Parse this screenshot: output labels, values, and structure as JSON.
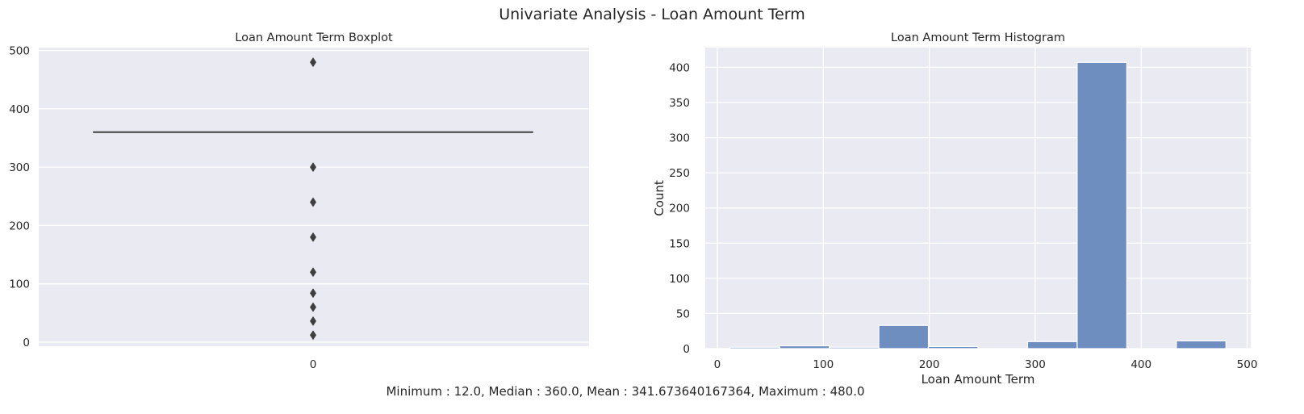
{
  "figure": {
    "suptitle": "Univariate Analysis - Loan Amount Term",
    "summary": "Minimum : 12.0, Median : 360.0, Mean : 341.673640167364, Maximum : 480.0"
  },
  "chart_data": [
    {
      "type": "box",
      "title": "Loan Amount Term Boxplot",
      "xlabel": "",
      "ylabel": "",
      "categories": [
        "0"
      ],
      "ylim": [
        -7,
        505
      ],
      "yticks": [
        0,
        100,
        200,
        300,
        400,
        500
      ],
      "box": {
        "q1": 360,
        "median": 360,
        "q3": 360,
        "whisker_low": 360,
        "whisker_high": 360
      },
      "outliers": [
        12,
        36,
        60,
        84,
        120,
        180,
        240,
        300,
        480
      ],
      "grid": true,
      "colors": {
        "background": "#eaeaf2",
        "grid": "#ffffff",
        "line": "#3f3f3f",
        "outlier": "#3f3f3f"
      }
    },
    {
      "type": "bar",
      "title": "Loan Amount Term Histogram",
      "xlabel": "Loan Amount Term",
      "ylabel": "Count",
      "xlim": [
        -11.4,
        503.4
      ],
      "ylim": [
        0,
        428
      ],
      "xticks": [
        0,
        100,
        200,
        300,
        400,
        500
      ],
      "yticks": [
        0,
        50,
        100,
        150,
        200,
        250,
        300,
        350,
        400
      ],
      "bins": [
        {
          "x0": 12.0,
          "x1": 58.8,
          "count": 2
        },
        {
          "x0": 58.8,
          "x1": 105.6,
          "count": 4
        },
        {
          "x0": 105.6,
          "x1": 152.4,
          "count": 2
        },
        {
          "x0": 152.4,
          "x1": 199.2,
          "count": 33
        },
        {
          "x0": 199.2,
          "x1": 246.0,
          "count": 3
        },
        {
          "x0": 246.0,
          "x1": 292.8,
          "count": 0
        },
        {
          "x0": 292.8,
          "x1": 339.6,
          "count": 10
        },
        {
          "x0": 339.6,
          "x1": 386.4,
          "count": 407
        },
        {
          "x0": 386.4,
          "x1": 433.2,
          "count": 0
        },
        {
          "x0": 433.2,
          "x1": 480.0,
          "count": 11
        }
      ],
      "grid": true,
      "colors": {
        "background": "#eaeaf2",
        "grid": "#ffffff",
        "bar": "#6e8ec0",
        "edge": "#ffffff"
      }
    }
  ]
}
